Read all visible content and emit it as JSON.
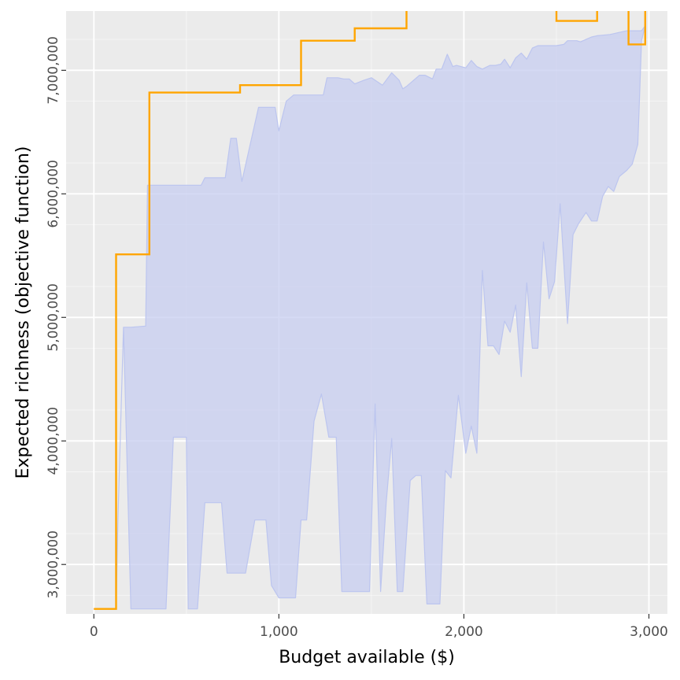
{
  "chart_data": {
    "type": "area",
    "title": "",
    "xlabel": "Budget available ($)",
    "ylabel": "Expected richness (objective function)",
    "xlim": [
      -150,
      3100
    ],
    "ylim": [
      2600000,
      7480000
    ],
    "x_ticks": [
      0,
      1000,
      2000,
      3000
    ],
    "x_tick_labels": [
      "0",
      "1,000",
      "2,000",
      "3,000"
    ],
    "y_ticks": [
      3000000,
      4000000,
      5000000,
      6000000,
      7000000
    ],
    "y_tick_labels": [
      "3,000,000",
      "4,000,000",
      "5,000,000",
      "6,000,000",
      "7,000,000"
    ],
    "y_minor_ticks": [
      2750000,
      3250000,
      3750000,
      4250000,
      4750000,
      5250000,
      5750000,
      6250000,
      6750000,
      7250000
    ],
    "grid": true,
    "legend": "none",
    "colors": {
      "panel_background": "#ebebeb",
      "grid_major": "#ffffff",
      "ribbon_fill": "#c5ccf0",
      "ribbon_outline": "#bcc5ef",
      "optimal_line": "#ffa500",
      "axis_tick": "#333333"
    },
    "series": [
      {
        "type": "ribbon",
        "upper": [
          [
            0,
            2640000
          ],
          [
            120,
            2640000
          ],
          [
            130,
            3350000
          ],
          [
            160,
            4920000
          ],
          [
            200,
            4920000
          ],
          [
            280,
            4930000
          ],
          [
            290,
            6070000
          ],
          [
            580,
            6070000
          ],
          [
            600,
            6130000
          ],
          [
            710,
            6130000
          ],
          [
            740,
            6450000
          ],
          [
            770,
            6450000
          ],
          [
            800,
            6100000
          ],
          [
            890,
            6700000
          ],
          [
            980,
            6700000
          ],
          [
            1000,
            6510000
          ],
          [
            1040,
            6750000
          ],
          [
            1080,
            6800000
          ],
          [
            1110,
            6800000
          ],
          [
            1240,
            6800000
          ],
          [
            1260,
            6940000
          ],
          [
            1320,
            6940000
          ],
          [
            1350,
            6930000
          ],
          [
            1380,
            6930000
          ],
          [
            1410,
            6890000
          ],
          [
            1460,
            6920000
          ],
          [
            1500,
            6940000
          ],
          [
            1530,
            6910000
          ],
          [
            1560,
            6880000
          ],
          [
            1610,
            6980000
          ],
          [
            1650,
            6920000
          ],
          [
            1670,
            6850000
          ],
          [
            1690,
            6870000
          ],
          [
            1760,
            6960000
          ],
          [
            1790,
            6960000
          ],
          [
            1830,
            6930000
          ],
          [
            1850,
            7010000
          ],
          [
            1880,
            7010000
          ],
          [
            1910,
            7130000
          ],
          [
            1940,
            7030000
          ],
          [
            1960,
            7040000
          ],
          [
            2010,
            7020000
          ],
          [
            2040,
            7080000
          ],
          [
            2070,
            7030000
          ],
          [
            2100,
            7010000
          ],
          [
            2140,
            7040000
          ],
          [
            2170,
            7040000
          ],
          [
            2200,
            7050000
          ],
          [
            2220,
            7090000
          ],
          [
            2250,
            7020000
          ],
          [
            2280,
            7100000
          ],
          [
            2310,
            7140000
          ],
          [
            2340,
            7090000
          ],
          [
            2370,
            7180000
          ],
          [
            2400,
            7200000
          ],
          [
            2470,
            7200000
          ],
          [
            2500,
            7200000
          ],
          [
            2540,
            7210000
          ],
          [
            2560,
            7240000
          ],
          [
            2610,
            7240000
          ],
          [
            2630,
            7230000
          ],
          [
            2660,
            7250000
          ],
          [
            2690,
            7270000
          ],
          [
            2720,
            7280000
          ],
          [
            2790,
            7290000
          ],
          [
            2880,
            7320000
          ],
          [
            2930,
            7320000
          ],
          [
            2960,
            7320000
          ],
          [
            2980,
            7360000
          ]
        ],
        "lower": [
          [
            0,
            2640000
          ],
          [
            120,
            2640000
          ],
          [
            130,
            3350000
          ],
          [
            160,
            4920000
          ],
          [
            200,
            2640000
          ],
          [
            280,
            2640000
          ],
          [
            390,
            2640000
          ],
          [
            430,
            4030000
          ],
          [
            480,
            4030000
          ],
          [
            500,
            4030000
          ],
          [
            510,
            2640000
          ],
          [
            560,
            2640000
          ],
          [
            600,
            3500000
          ],
          [
            690,
            3500000
          ],
          [
            720,
            2930000
          ],
          [
            760,
            2930000
          ],
          [
            820,
            2930000
          ],
          [
            870,
            3360000
          ],
          [
            930,
            3360000
          ],
          [
            960,
            2830000
          ],
          [
            1000,
            2730000
          ],
          [
            1040,
            2730000
          ],
          [
            1090,
            2730000
          ],
          [
            1120,
            3360000
          ],
          [
            1150,
            3360000
          ],
          [
            1190,
            4160000
          ],
          [
            1230,
            4380000
          ],
          [
            1270,
            4030000
          ],
          [
            1310,
            4030000
          ],
          [
            1340,
            2780000
          ],
          [
            1410,
            2780000
          ],
          [
            1490,
            2780000
          ],
          [
            1520,
            4300000
          ],
          [
            1550,
            2780000
          ],
          [
            1580,
            3500000
          ],
          [
            1610,
            4020000
          ],
          [
            1640,
            2780000
          ],
          [
            1670,
            2780000
          ],
          [
            1710,
            3680000
          ],
          [
            1740,
            3720000
          ],
          [
            1770,
            3720000
          ],
          [
            1800,
            2680000
          ],
          [
            1840,
            2680000
          ],
          [
            1870,
            2680000
          ],
          [
            1900,
            3760000
          ],
          [
            1930,
            3700000
          ],
          [
            1970,
            4370000
          ],
          [
            2010,
            3900000
          ],
          [
            2040,
            4120000
          ],
          [
            2070,
            3900000
          ],
          [
            2100,
            5380000
          ],
          [
            2130,
            4770000
          ],
          [
            2160,
            4770000
          ],
          [
            2190,
            4700000
          ],
          [
            2220,
            4970000
          ],
          [
            2250,
            4880000
          ],
          [
            2280,
            5100000
          ],
          [
            2310,
            4520000
          ],
          [
            2340,
            5280000
          ],
          [
            2370,
            4750000
          ],
          [
            2400,
            4750000
          ],
          [
            2430,
            5610000
          ],
          [
            2460,
            5150000
          ],
          [
            2490,
            5290000
          ],
          [
            2520,
            5920000
          ],
          [
            2560,
            4950000
          ],
          [
            2590,
            5670000
          ],
          [
            2620,
            5760000
          ],
          [
            2660,
            5850000
          ],
          [
            2690,
            5780000
          ],
          [
            2720,
            5780000
          ],
          [
            2750,
            5980000
          ],
          [
            2780,
            6060000
          ],
          [
            2810,
            6020000
          ],
          [
            2840,
            6140000
          ],
          [
            2880,
            6190000
          ],
          [
            2910,
            6240000
          ],
          [
            2940,
            6400000
          ],
          [
            2950,
            6800000
          ],
          [
            2960,
            7240000
          ],
          [
            2980,
            7360000
          ]
        ]
      },
      {
        "type": "step",
        "points": [
          [
            0,
            2640000
          ],
          [
            120,
            2640000
          ],
          [
            120,
            5510000
          ],
          [
            300,
            5510000
          ],
          [
            300,
            6820000
          ],
          [
            790,
            6820000
          ],
          [
            790,
            6880000
          ],
          [
            1120,
            6880000
          ],
          [
            1120,
            7240000
          ],
          [
            1410,
            7240000
          ],
          [
            1410,
            7340000
          ],
          [
            1690,
            7340000
          ],
          [
            1690,
            7610000
          ],
          [
            2200,
            7610000
          ],
          [
            2200,
            7680000
          ],
          [
            2500,
            7680000
          ],
          [
            2500,
            7400000
          ],
          [
            2720,
            7400000
          ],
          [
            2720,
            7750000
          ],
          [
            2800,
            7750000
          ],
          [
            2800,
            7780000
          ],
          [
            2890,
            7780000
          ],
          [
            2890,
            7210000
          ],
          [
            2980,
            7210000
          ],
          [
            2980,
            7900000
          ]
        ]
      }
    ]
  }
}
